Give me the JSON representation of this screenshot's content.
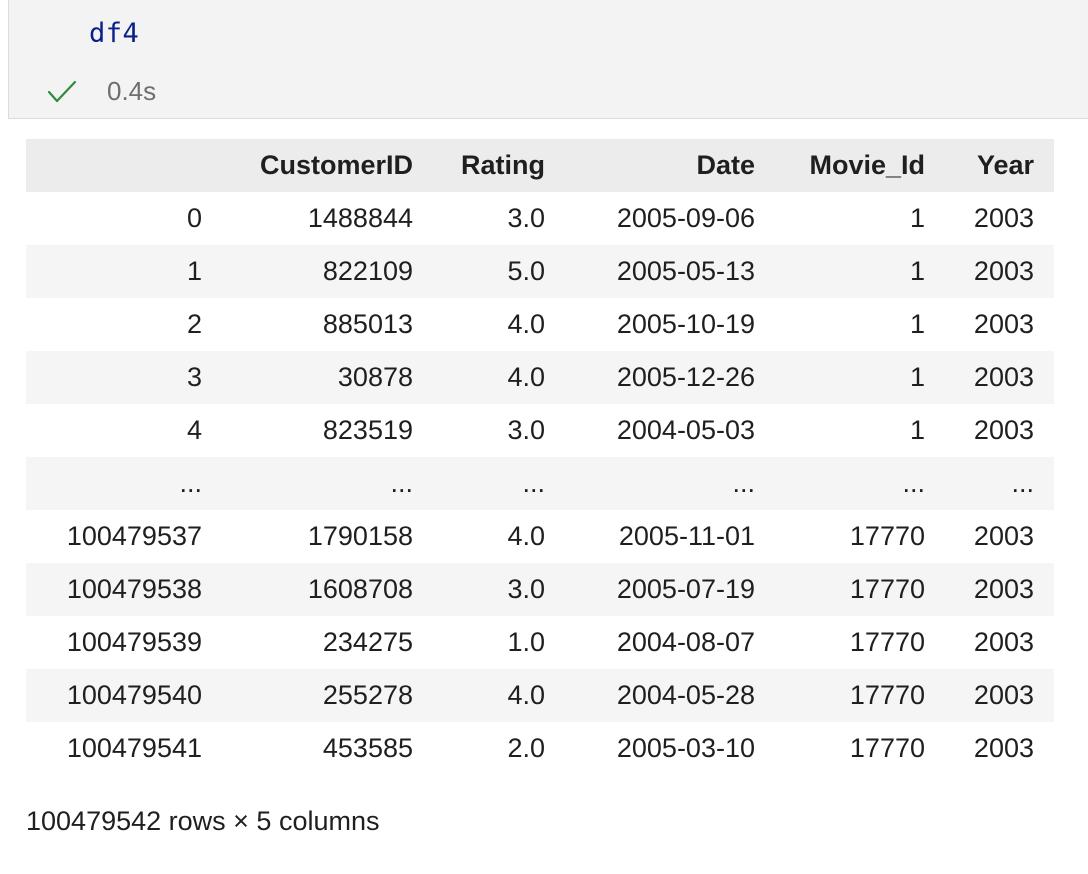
{
  "cell": {
    "code": "df4",
    "status_icon": "check-icon",
    "exec_time": "0.4s",
    "status_color": "#2e8b3a"
  },
  "table": {
    "columns": [
      "",
      "CustomerID",
      "Rating",
      "Date",
      "Movie_Id",
      "Year"
    ],
    "rows": [
      [
        "0",
        "1488844",
        "3.0",
        "2005-09-06",
        "1",
        "2003"
      ],
      [
        "1",
        "822109",
        "5.0",
        "2005-05-13",
        "1",
        "2003"
      ],
      [
        "2",
        "885013",
        "4.0",
        "2005-10-19",
        "1",
        "2003"
      ],
      [
        "3",
        "30878",
        "4.0",
        "2005-12-26",
        "1",
        "2003"
      ],
      [
        "4",
        "823519",
        "3.0",
        "2004-05-03",
        "1",
        "2003"
      ],
      [
        "...",
        "...",
        "...",
        "...",
        "...",
        "..."
      ],
      [
        "100479537",
        "1790158",
        "4.0",
        "2005-11-01",
        "17770",
        "2003"
      ],
      [
        "100479538",
        "1608708",
        "3.0",
        "2005-07-19",
        "17770",
        "2003"
      ],
      [
        "100479539",
        "234275",
        "1.0",
        "2004-08-07",
        "17770",
        "2003"
      ],
      [
        "100479540",
        "255278",
        "4.0",
        "2004-05-28",
        "17770",
        "2003"
      ],
      [
        "100479541",
        "453585",
        "2.0",
        "2005-03-10",
        "17770",
        "2003"
      ]
    ]
  },
  "shape_text": "100479542 rows × 5 columns"
}
